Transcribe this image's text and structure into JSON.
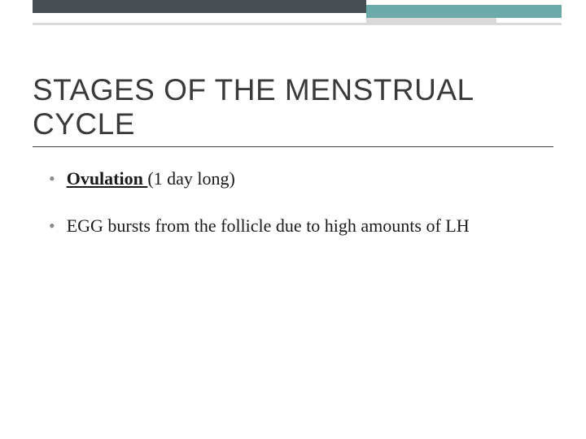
{
  "slide": {
    "title": "STAGES OF THE MENSTRUAL CYCLE",
    "bullets": [
      {
        "emphasis": "Ovulation ",
        "rest": " (1 day long)"
      },
      {
        "emphasis": "",
        "rest": "EGG bursts from the follicle due to high amounts of LH"
      }
    ]
  },
  "styling": {
    "bar_dark_color": "#4a4f55",
    "bar_teal_color": "#6ca9aa",
    "bar_gray_color": "#d9d9d9",
    "title_fontsize": 37,
    "body_fontsize": 22,
    "title_color": "#3a3a3a",
    "body_color": "#1a1a1a",
    "bullet_color": "#8a8a8a",
    "background_color": "#ffffff"
  }
}
